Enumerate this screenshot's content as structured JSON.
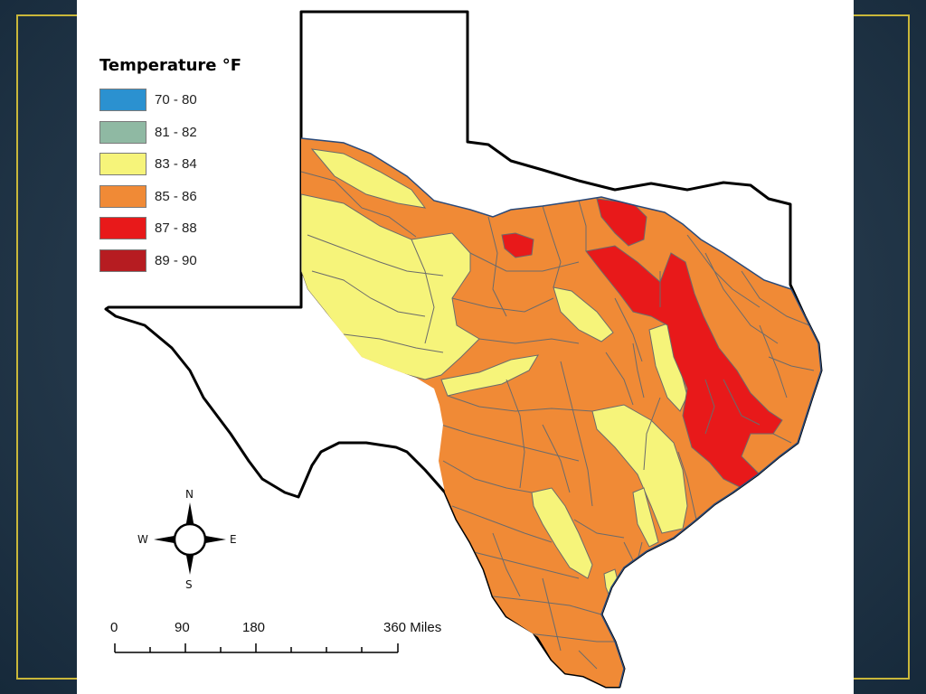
{
  "legend": {
    "title": "Temperature °F",
    "classes": [
      {
        "label": "70 - 80",
        "color": "#2b91d0"
      },
      {
        "label": "81 - 82",
        "color": "#8fb9a3"
      },
      {
        "label": "83 - 84",
        "color": "#f6f47a"
      },
      {
        "label": "85 - 86",
        "color": "#f08a36"
      },
      {
        "label": "87 - 88",
        "color": "#e8191a"
      },
      {
        "label": "89 - 90",
        "color": "#b61c21"
      }
    ]
  },
  "compass": {
    "north": "N",
    "south": "S",
    "east": "E",
    "west": "W"
  },
  "scale_bar": {
    "ticks": [
      "0",
      "90",
      "180",
      "360 Miles"
    ]
  },
  "colors": {
    "slide_border": "#c9b73a",
    "outline": "#000000",
    "basin_edge": "#666666"
  }
}
